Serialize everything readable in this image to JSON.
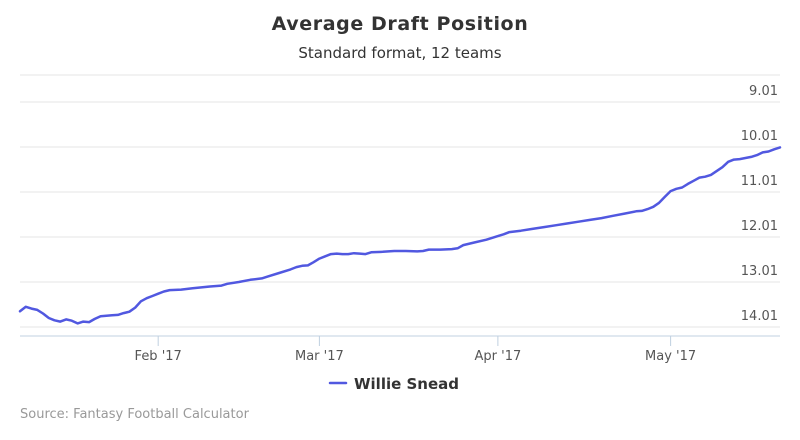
{
  "chart_data": {
    "type": "line",
    "title": "Average Draft Position",
    "subtitle": "Standard format, 12 teams",
    "y_axis": {
      "reversed": true,
      "range": [
        9.0,
        14.15
      ],
      "position": "right",
      "ticks": [
        {
          "value": 9.0,
          "label": "9.01"
        },
        {
          "value": 10.0,
          "label": "10.01"
        },
        {
          "value": 11.0,
          "label": "11.01"
        },
        {
          "value": 12.0,
          "label": "12.01"
        },
        {
          "value": 13.0,
          "label": "13.01"
        },
        {
          "value": 14.0,
          "label": "14.01"
        }
      ]
    },
    "x_axis": {
      "type": "date",
      "range": [
        "2017-01-08",
        "2017-05-20"
      ],
      "ticks": [
        {
          "date": "2017-02-01",
          "label": "Feb '17"
        },
        {
          "date": "2017-03-01",
          "label": "Mar '17"
        },
        {
          "date": "2017-04-01",
          "label": "Apr '17"
        },
        {
          "date": "2017-05-01",
          "label": "May '17"
        }
      ]
    },
    "grid": true,
    "legend": {
      "position": "bottom-center"
    },
    "series": [
      {
        "name": "Willie Snead",
        "color": "#5158e0",
        "points": [
          [
            "2017-01-08",
            13.65
          ],
          [
            "2017-01-09",
            13.55
          ],
          [
            "2017-01-10",
            13.59
          ],
          [
            "2017-01-11",
            13.62
          ],
          [
            "2017-01-12",
            13.7
          ],
          [
            "2017-01-13",
            13.8
          ],
          [
            "2017-01-14",
            13.85
          ],
          [
            "2017-01-15",
            13.88
          ],
          [
            "2017-01-16",
            13.83
          ],
          [
            "2017-01-17",
            13.86
          ],
          [
            "2017-01-18",
            13.92
          ],
          [
            "2017-01-19",
            13.88
          ],
          [
            "2017-01-20",
            13.89
          ],
          [
            "2017-01-21",
            13.82
          ],
          [
            "2017-01-22",
            13.76
          ],
          [
            "2017-01-23",
            13.75
          ],
          [
            "2017-01-24",
            13.74
          ],
          [
            "2017-01-25",
            13.73
          ],
          [
            "2017-01-26",
            13.69
          ],
          [
            "2017-01-27",
            13.66
          ],
          [
            "2017-01-28",
            13.57
          ],
          [
            "2017-01-29",
            13.43
          ],
          [
            "2017-01-30",
            13.36
          ],
          [
            "2017-01-31",
            13.31
          ],
          [
            "2017-02-01",
            13.26
          ],
          [
            "2017-02-02",
            13.21
          ],
          [
            "2017-02-03",
            13.18
          ],
          [
            "2017-02-05",
            13.17
          ],
          [
            "2017-02-07",
            13.14
          ],
          [
            "2017-02-10",
            13.1
          ],
          [
            "2017-02-12",
            13.08
          ],
          [
            "2017-02-13",
            13.04
          ],
          [
            "2017-02-15",
            13.0
          ],
          [
            "2017-02-17",
            12.95
          ],
          [
            "2017-02-19",
            12.92
          ],
          [
            "2017-02-20",
            12.88
          ],
          [
            "2017-02-22",
            12.8
          ],
          [
            "2017-02-24",
            12.72
          ],
          [
            "2017-02-25",
            12.67
          ],
          [
            "2017-02-26",
            12.64
          ],
          [
            "2017-02-27",
            12.63
          ],
          [
            "2017-02-28",
            12.56
          ],
          [
            "2017-03-01",
            12.48
          ],
          [
            "2017-03-02",
            12.43
          ],
          [
            "2017-03-03",
            12.38
          ],
          [
            "2017-03-04",
            12.37
          ],
          [
            "2017-03-05",
            12.38
          ],
          [
            "2017-03-06",
            12.38
          ],
          [
            "2017-03-07",
            12.36
          ],
          [
            "2017-03-08",
            12.37
          ],
          [
            "2017-03-09",
            12.38
          ],
          [
            "2017-03-10",
            12.34
          ],
          [
            "2017-03-12",
            12.33
          ],
          [
            "2017-03-14",
            12.31
          ],
          [
            "2017-03-16",
            12.31
          ],
          [
            "2017-03-18",
            12.32
          ],
          [
            "2017-03-19",
            12.31
          ],
          [
            "2017-03-20",
            12.28
          ],
          [
            "2017-03-22",
            12.28
          ],
          [
            "2017-03-24",
            12.27
          ],
          [
            "2017-03-25",
            12.25
          ],
          [
            "2017-03-26",
            12.18
          ],
          [
            "2017-03-28",
            12.12
          ],
          [
            "2017-03-30",
            12.06
          ],
          [
            "2017-04-01",
            11.98
          ],
          [
            "2017-04-02",
            11.94
          ],
          [
            "2017-04-03",
            11.89
          ],
          [
            "2017-04-05",
            11.86
          ],
          [
            "2017-04-07",
            11.82
          ],
          [
            "2017-04-09",
            11.78
          ],
          [
            "2017-04-11",
            11.74
          ],
          [
            "2017-04-13",
            11.7
          ],
          [
            "2017-04-15",
            11.66
          ],
          [
            "2017-04-17",
            11.62
          ],
          [
            "2017-04-19",
            11.58
          ],
          [
            "2017-04-21",
            11.53
          ],
          [
            "2017-04-23",
            11.48
          ],
          [
            "2017-04-25",
            11.43
          ],
          [
            "2017-04-26",
            11.42
          ],
          [
            "2017-04-27",
            11.38
          ],
          [
            "2017-04-28",
            11.33
          ],
          [
            "2017-04-29",
            11.24
          ],
          [
            "2017-04-30",
            11.11
          ],
          [
            "2017-05-01",
            10.98
          ],
          [
            "2017-05-02",
            10.93
          ],
          [
            "2017-05-03",
            10.9
          ],
          [
            "2017-05-04",
            10.82
          ],
          [
            "2017-05-05",
            10.75
          ],
          [
            "2017-05-06",
            10.68
          ],
          [
            "2017-05-07",
            10.66
          ],
          [
            "2017-05-08",
            10.62
          ],
          [
            "2017-05-10",
            10.45
          ],
          [
            "2017-05-11",
            10.33
          ],
          [
            "2017-05-12",
            10.28
          ],
          [
            "2017-05-13",
            10.27
          ],
          [
            "2017-05-15",
            10.22
          ],
          [
            "2017-05-16",
            10.18
          ],
          [
            "2017-05-17",
            10.12
          ],
          [
            "2017-05-18",
            10.1
          ],
          [
            "2017-05-19",
            10.05
          ],
          [
            "2017-05-20",
            10.01
          ]
        ]
      }
    ],
    "credits": "Source: Fantasy Football Calculator"
  }
}
